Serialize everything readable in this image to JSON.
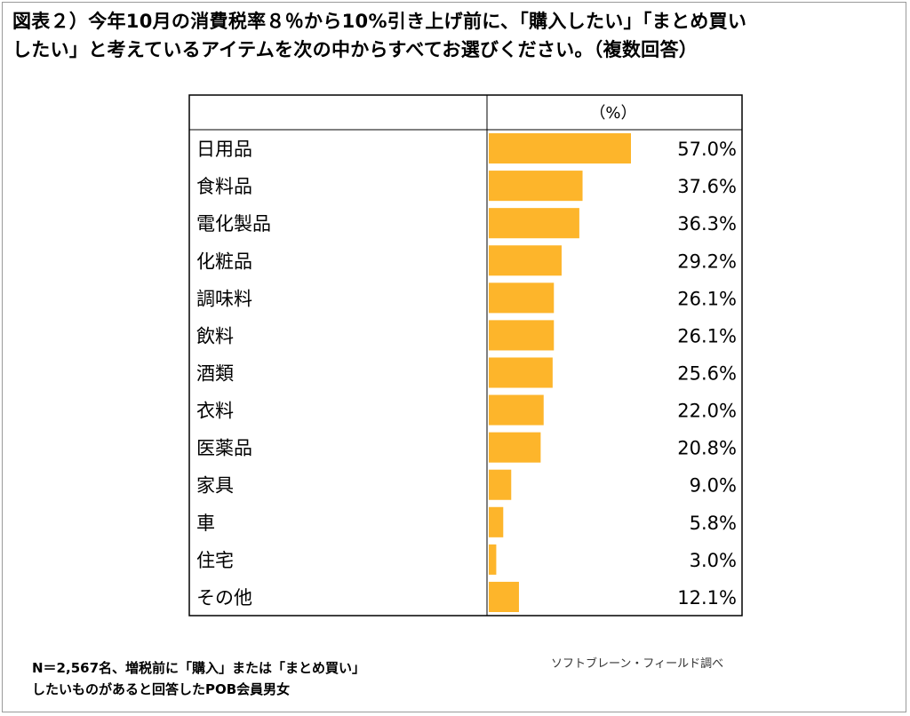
{
  "title": {
    "line1": "図表２）今年10月の消費税率８％から10%引き上げ前に、「購入したい」「まとめ買い",
    "line2": "したい」と考えているアイテムを次の中からすべてお選びください。（複数回答）"
  },
  "chart_data": {
    "type": "bar",
    "orientation": "horizontal",
    "unit_header": "（%）",
    "categories": [
      "日用品",
      "食料品",
      "電化製品",
      "化粧品",
      "調味料",
      "飲料",
      "酒類",
      "衣料",
      "医薬品",
      "家具",
      "車",
      "住宅",
      "その他"
    ],
    "values": [
      57.0,
      37.6,
      36.3,
      29.2,
      26.1,
      26.1,
      25.6,
      22.0,
      20.8,
      9.0,
      5.8,
      3.0,
      12.1
    ],
    "labels": [
      "57.0%",
      "37.6%",
      "36.3%",
      "29.2%",
      "26.1%",
      "26.1%",
      "25.6%",
      "22.0%",
      "20.8%",
      "9.0%",
      "5.8%",
      "3.0%",
      "12.1%"
    ],
    "bar_color": "#FDB52B",
    "xlim": [
      0,
      57.0
    ]
  },
  "footnote": {
    "line1": "N＝2,567名、増税前に「購入」または「まとめ買い」",
    "line2": "したいものがあると回答したPOB会員男女"
  },
  "source": "ソフトブレーン・フィールド調べ"
}
